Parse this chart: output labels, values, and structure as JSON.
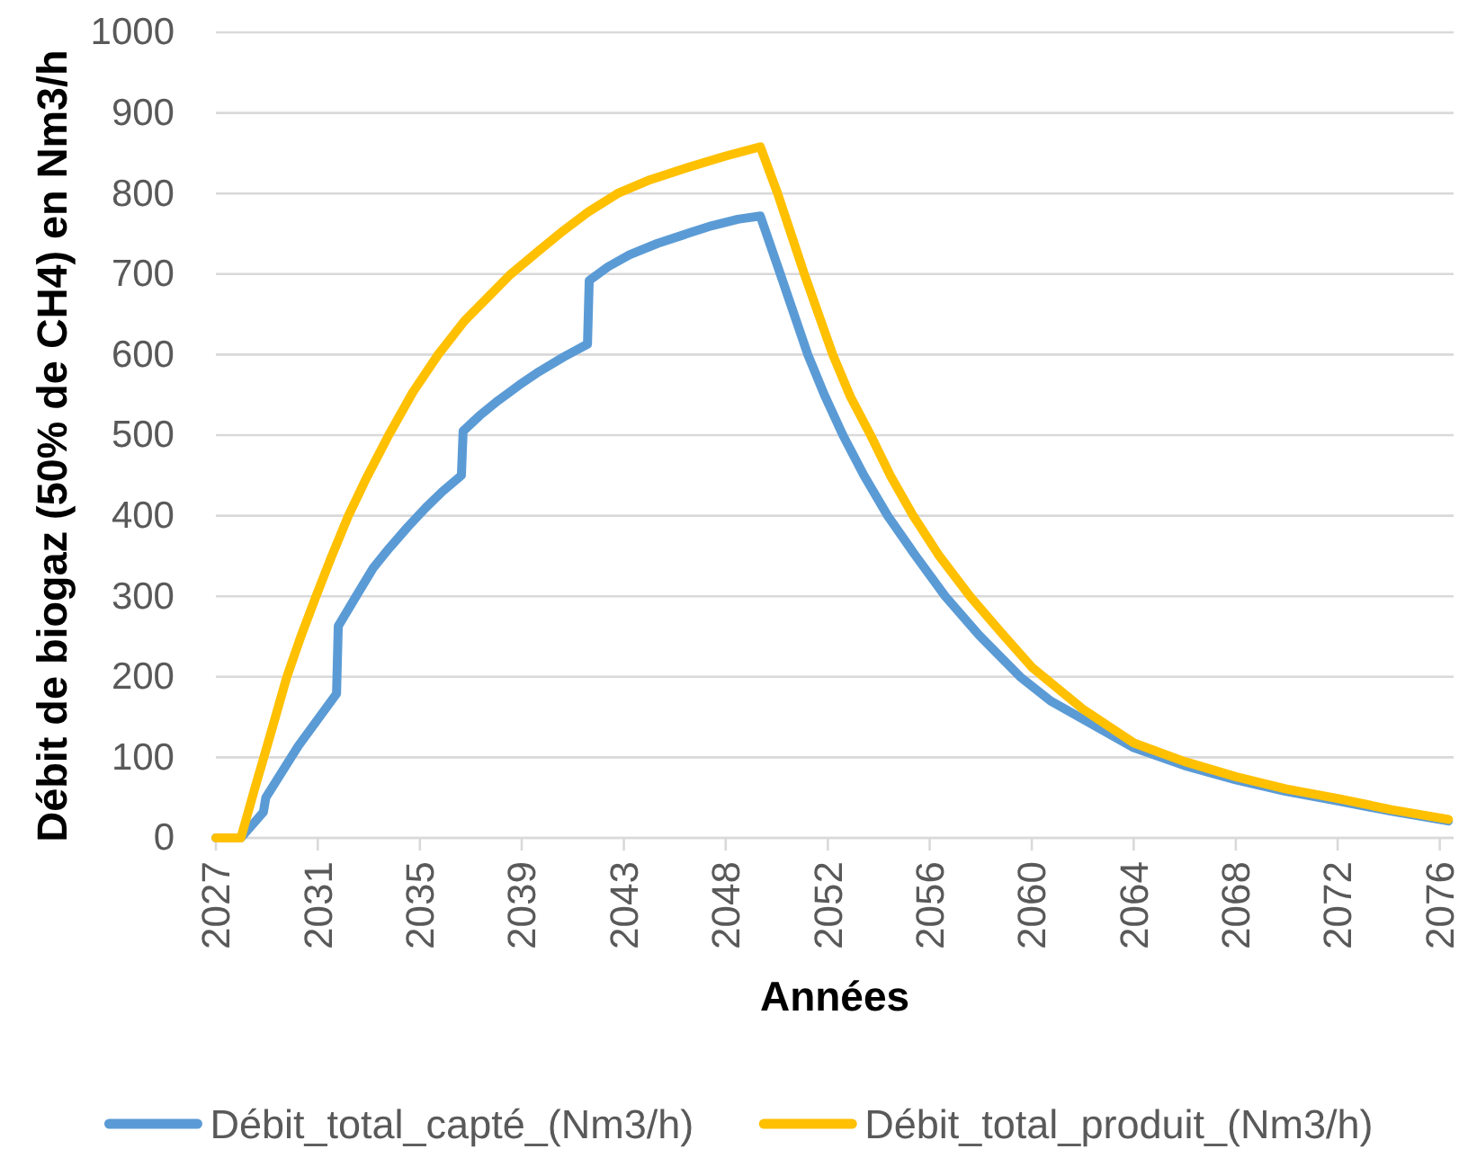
{
  "chart_data": {
    "type": "line",
    "xlabel": "Années",
    "ylabel": "Débit de biogaz (50% de CH4) en Nm3/h",
    "xlim": [
      2026.94,
      2077.0
    ],
    "ylim": [
      0,
      1000
    ],
    "xticks": [
      {
        "value": 2026.94,
        "label": "2027"
      },
      {
        "value": 2031.06,
        "label": "2031"
      },
      {
        "value": 2035.19,
        "label": "2035"
      },
      {
        "value": 2039.31,
        "label": "2039"
      },
      {
        "value": 2043.44,
        "label": "2043"
      },
      {
        "value": 2047.56,
        "label": "2048"
      },
      {
        "value": 2051.69,
        "label": "2052"
      },
      {
        "value": 2055.81,
        "label": "2056"
      },
      {
        "value": 2059.94,
        "label": "2060"
      },
      {
        "value": 2064.06,
        "label": "2064"
      },
      {
        "value": 2068.19,
        "label": "2068"
      },
      {
        "value": 2072.31,
        "label": "2072"
      },
      {
        "value": 2076.44,
        "label": "2076"
      }
    ],
    "yticks": [
      0,
      100,
      200,
      300,
      400,
      500,
      600,
      700,
      800,
      900,
      1000
    ],
    "grid": "y",
    "legend": "bottom",
    "series": [
      {
        "name": "Débit_total_capté_(Nm3/h)",
        "color": "#5b9bd5",
        "x": [
          2026.94,
          2027.95,
          2028.86,
          2028.96,
          2030.27,
          2031.82,
          2031.89,
          2032.75,
          2033.3,
          2033.96,
          2034.7,
          2035.43,
          2036.1,
          2036.87,
          2036.94,
          2037.6,
          2038.36,
          2039.2,
          2040.02,
          2041.0,
          2041.97,
          2042.04,
          2042.8,
          2043.67,
          2044.8,
          2046.09,
          2047.0,
          2048.05,
          2048.96,
          2049.77,
          2050.88,
          2051.55,
          2052.3,
          2053.15,
          2054.11,
          2055.2,
          2056.44,
          2057.8,
          2059.47,
          2060.7,
          2062.09,
          2064.06,
          2066.1,
          2068.19,
          2070.2,
          2072.31,
          2074.5,
          2076.79
        ],
        "values": [
          0,
          0,
          32,
          50,
          114,
          179,
          263,
          307,
          335,
          360,
          386,
          410,
          430,
          450,
          505,
          524,
          543,
          562,
          579,
          597,
          613,
          692,
          709,
          724,
          738,
          751,
          760,
          768,
          772,
          700,
          600,
          550,
          500,
          450,
          400,
          352,
          300,
          252,
          200,
          170,
          146,
          112,
          90,
          72,
          58,
          46,
          33,
          21
        ]
      },
      {
        "name": "Débit_total_produit_(Nm3/h)",
        "color": "#ffc000",
        "x": [
          2026.94,
          2027.95,
          2028.5,
          2028.88,
          2029.3,
          2029.81,
          2030.4,
          2030.99,
          2031.6,
          2032.3,
          2033.0,
          2033.93,
          2034.9,
          2035.93,
          2037.0,
          2038.0,
          2038.87,
          2040.0,
          2041.0,
          2042.0,
          2043.19,
          2044.5,
          2046.0,
          2047.5,
          2048.96,
          2049.66,
          2050.74,
          2051.89,
          2052.6,
          2053.42,
          2054.25,
          2055.14,
          2056.2,
          2057.44,
          2058.7,
          2059.94,
          2062.0,
          2064.06,
          2066.1,
          2068.19,
          2070.2,
          2072.31,
          2074.5,
          2076.79
        ],
        "values": [
          0,
          0,
          60,
          100,
          145,
          200,
          252,
          300,
          348,
          400,
          445,
          500,
          553,
          600,
          642,
          673,
          700,
          729,
          754,
          777,
          800,
          817,
          832,
          846,
          858,
          800,
          700,
          600,
          548,
          500,
          448,
          400,
          350,
          300,
          255,
          212,
          160,
          118,
          95,
          76,
          61,
          49,
          35,
          23
        ]
      }
    ]
  }
}
